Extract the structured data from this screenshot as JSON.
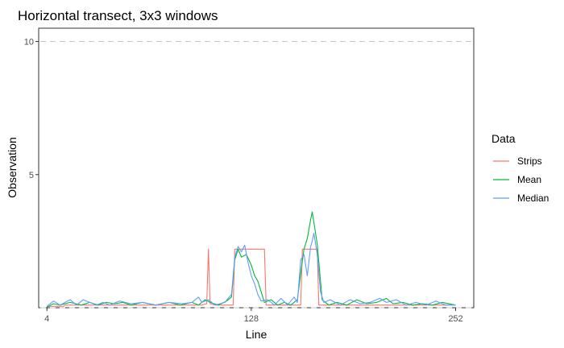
{
  "chart_data": {
    "type": "line",
    "title": "Horizontal transect, 3x3 windows",
    "xlabel": "Line",
    "ylabel": "Observation",
    "xlim": [
      -1,
      263
    ],
    "ylim": [
      0,
      10.5
    ],
    "x_ticks": [
      4,
      128,
      252
    ],
    "y_ticks": [
      5,
      10
    ],
    "reference_lines": [
      0,
      10
    ],
    "grid": false,
    "legend": {
      "title": "Data",
      "position": "right"
    },
    "series": [
      {
        "name": "Strips",
        "color": "#F8766D",
        "points": [
          [
            4,
            0.05
          ],
          [
            14,
            0.05
          ],
          [
            15,
            0.1
          ],
          [
            50,
            0.1
          ],
          [
            98,
            0.1
          ],
          [
            101,
            0.15
          ],
          [
            102,
            2.2
          ],
          [
            103,
            0.15
          ],
          [
            106,
            0.1
          ],
          [
            117,
            0.1
          ],
          [
            118,
            2.2
          ],
          [
            136,
            2.2
          ],
          [
            137,
            0.1
          ],
          [
            158,
            0.1
          ],
          [
            159,
            2.2
          ],
          [
            168,
            2.2
          ],
          [
            169,
            0.1
          ],
          [
            252,
            0.1
          ]
        ]
      },
      {
        "name": "Mean",
        "color": "#00BA38",
        "points": [
          [
            4,
            0.02
          ],
          [
            8,
            0.15
          ],
          [
            12,
            0.1
          ],
          [
            18,
            0.2
          ],
          [
            25,
            0.1
          ],
          [
            30,
            0.2
          ],
          [
            35,
            0.1
          ],
          [
            40,
            0.2
          ],
          [
            45,
            0.15
          ],
          [
            50,
            0.2
          ],
          [
            55,
            0.1
          ],
          [
            62,
            0.2
          ],
          [
            70,
            0.1
          ],
          [
            78,
            0.2
          ],
          [
            85,
            0.1
          ],
          [
            92,
            0.2
          ],
          [
            96,
            0.1
          ],
          [
            100,
            0.3
          ],
          [
            103,
            0.2
          ],
          [
            108,
            0.1
          ],
          [
            113,
            0.25
          ],
          [
            116,
            0.4
          ],
          [
            118,
            1.8
          ],
          [
            120,
            2.2
          ],
          [
            122,
            1.9
          ],
          [
            125,
            2.0
          ],
          [
            128,
            1.6
          ],
          [
            130,
            1.2
          ],
          [
            132,
            1.0
          ],
          [
            134,
            0.6
          ],
          [
            136,
            0.2
          ],
          [
            140,
            0.3
          ],
          [
            144,
            0.1
          ],
          [
            148,
            0.2
          ],
          [
            152,
            0.1
          ],
          [
            156,
            0.3
          ],
          [
            158,
            1.3
          ],
          [
            160,
            2.2
          ],
          [
            162,
            2.6
          ],
          [
            164,
            3.3
          ],
          [
            165,
            3.6
          ],
          [
            166,
            3.2
          ],
          [
            168,
            2.4
          ],
          [
            170,
            1.0
          ],
          [
            171,
            0.3
          ],
          [
            175,
            0.1
          ],
          [
            180,
            0.2
          ],
          [
            186,
            0.1
          ],
          [
            192,
            0.3
          ],
          [
            198,
            0.15
          ],
          [
            204,
            0.2
          ],
          [
            210,
            0.35
          ],
          [
            214,
            0.15
          ],
          [
            220,
            0.2
          ],
          [
            226,
            0.1
          ],
          [
            232,
            0.15
          ],
          [
            238,
            0.1
          ],
          [
            244,
            0.2
          ],
          [
            252,
            0.1
          ]
        ]
      },
      {
        "name": "Median",
        "color": "#619CFF",
        "points": [
          [
            4,
            0.05
          ],
          [
            8,
            0.25
          ],
          [
            12,
            0.1
          ],
          [
            18,
            0.3
          ],
          [
            22,
            0.1
          ],
          [
            26,
            0.3
          ],
          [
            30,
            0.2
          ],
          [
            34,
            0.1
          ],
          [
            38,
            0.2
          ],
          [
            42,
            0.1
          ],
          [
            48,
            0.25
          ],
          [
            55,
            0.15
          ],
          [
            62,
            0.2
          ],
          [
            70,
            0.1
          ],
          [
            78,
            0.2
          ],
          [
            86,
            0.15
          ],
          [
            92,
            0.2
          ],
          [
            96,
            0.4
          ],
          [
            98,
            0.2
          ],
          [
            102,
            0.3
          ],
          [
            106,
            0.1
          ],
          [
            112,
            0.2
          ],
          [
            116,
            0.5
          ],
          [
            118,
            1.9
          ],
          [
            120,
            2.3
          ],
          [
            122,
            2.1
          ],
          [
            124,
            2.35
          ],
          [
            126,
            1.7
          ],
          [
            128,
            1.2
          ],
          [
            130,
            0.9
          ],
          [
            132,
            0.5
          ],
          [
            134,
            0.25
          ],
          [
            138,
            0.3
          ],
          [
            142,
            0.1
          ],
          [
            146,
            0.35
          ],
          [
            150,
            0.1
          ],
          [
            154,
            0.4
          ],
          [
            156,
            0.2
          ],
          [
            158,
            1.8
          ],
          [
            160,
            2.0
          ],
          [
            162,
            1.2
          ],
          [
            164,
            2.3
          ],
          [
            165,
            2.5
          ],
          [
            166,
            2.8
          ],
          [
            168,
            2.0
          ],
          [
            170,
            0.6
          ],
          [
            172,
            0.2
          ],
          [
            176,
            0.3
          ],
          [
            182,
            0.1
          ],
          [
            188,
            0.3
          ],
          [
            194,
            0.15
          ],
          [
            200,
            0.2
          ],
          [
            206,
            0.35
          ],
          [
            210,
            0.2
          ],
          [
            216,
            0.3
          ],
          [
            222,
            0.1
          ],
          [
            228,
            0.2
          ],
          [
            234,
            0.1
          ],
          [
            240,
            0.25
          ],
          [
            246,
            0.1
          ],
          [
            252,
            0.1
          ]
        ]
      }
    ]
  }
}
